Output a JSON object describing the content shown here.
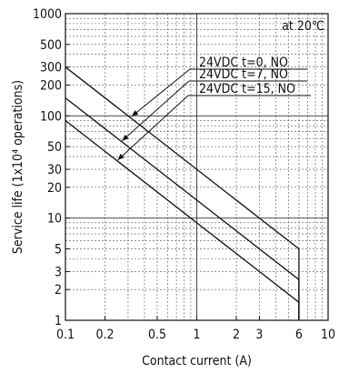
{
  "chart_data": {
    "type": "line",
    "title": "",
    "xlabel": "Contact current (A)",
    "ylabel": "Service life (1x10⁴ operations)",
    "x_scale": "log",
    "y_scale": "log",
    "xlim": [
      0.1,
      10
    ],
    "ylim": [
      1,
      1000
    ],
    "x_ticks": [
      0.1,
      0.2,
      0.5,
      1,
      2,
      3,
      6,
      10
    ],
    "x_tick_labels": [
      "0.1",
      "0.2",
      "0.5",
      "1",
      "2",
      "3",
      "6",
      "10"
    ],
    "y_ticks": [
      1,
      2,
      3,
      5,
      10,
      20,
      30,
      50,
      100,
      200,
      300,
      500,
      1000
    ],
    "y_tick_labels": [
      "1",
      "2",
      "3",
      "5",
      "10",
      "20",
      "30",
      "50",
      "100",
      "200",
      "300",
      "500",
      "1000"
    ],
    "grid": true,
    "annotation": "at 20℃",
    "series": [
      {
        "name": "24VDC t=0, NO",
        "x": [
          0.1,
          6,
          6
        ],
        "y": [
          300,
          5,
          1
        ]
      },
      {
        "name": "24VDC t=7, NO",
        "x": [
          0.1,
          6,
          6
        ],
        "y": [
          150,
          2.5,
          1
        ]
      },
      {
        "name": "24VDC t=15, NO",
        "x": [
          0.1,
          6,
          6
        ],
        "y": [
          90,
          1.5,
          1
        ]
      }
    ],
    "label_arrow_targets": [
      {
        "x": 0.32,
        "y": 99
      },
      {
        "x": 0.27,
        "y": 57
      },
      {
        "x": 0.25,
        "y": 37
      }
    ]
  }
}
